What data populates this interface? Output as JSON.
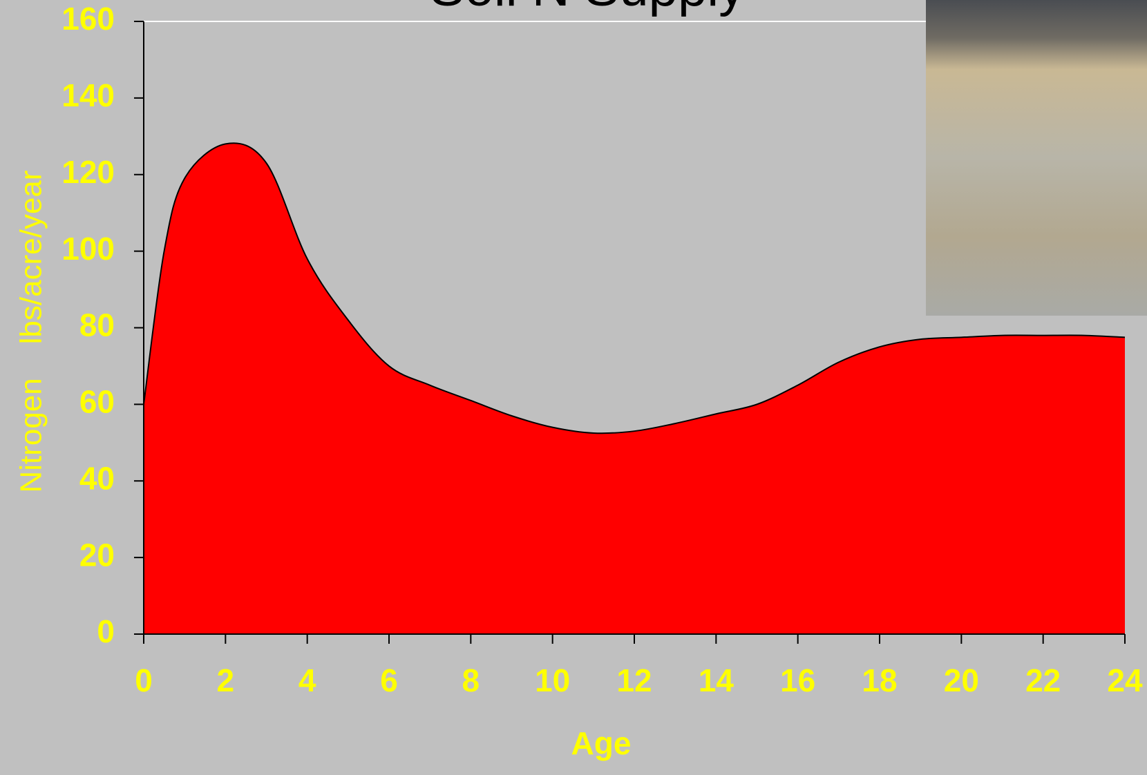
{
  "chart_data": {
    "type": "area",
    "title": "Soil N Supply",
    "x_label": "Age",
    "y_label": "Nitrogen    lbs/acre/year",
    "x": [
      0,
      0.5,
      1,
      2,
      3,
      4,
      5,
      6,
      7,
      8,
      9,
      10,
      11,
      12,
      13,
      14,
      15,
      16,
      17,
      18,
      19,
      20,
      21,
      22,
      23,
      24
    ],
    "series": [
      {
        "color": "#ff0000",
        "values": [
          60,
          100,
          119,
          128,
          123,
          98,
          82,
          70,
          65,
          61,
          57,
          54,
          52.5,
          53,
          55,
          57.5,
          60,
          65,
          71,
          75,
          77,
          77.5,
          78,
          78,
          78,
          77.5
        ]
      }
    ],
    "xlim": [
      0,
      24
    ],
    "xticks": [
      0,
      2,
      4,
      6,
      8,
      10,
      12,
      14,
      16,
      18,
      20,
      22,
      24
    ],
    "ylim": [
      0,
      160
    ],
    "yticks": [
      0,
      20,
      40,
      60,
      80,
      100,
      120,
      140,
      160
    ]
  }
}
